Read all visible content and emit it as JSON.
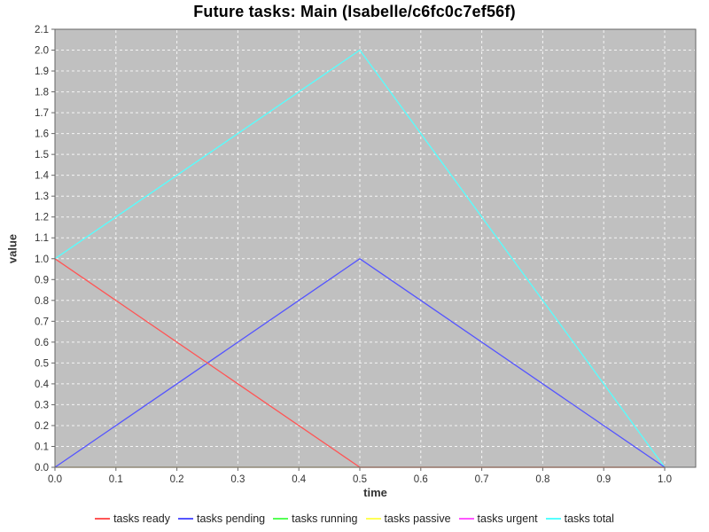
{
  "chart_data": {
    "type": "line",
    "title": "Future tasks: Main (Isabelle/c6fc0c7ef56f)",
    "xlabel": "time",
    "ylabel": "value",
    "xlim": [
      0.0,
      1.05
    ],
    "ylim": [
      0.0,
      2.1
    ],
    "x_ticks": [
      0.0,
      0.1,
      0.2,
      0.3,
      0.4,
      0.5,
      0.6,
      0.7,
      0.8,
      0.9,
      1.0
    ],
    "y_ticks": [
      0.0,
      0.1,
      0.2,
      0.3,
      0.4,
      0.5,
      0.6,
      0.7,
      0.8,
      0.9,
      1.0,
      1.1,
      1.2,
      1.3,
      1.4,
      1.5,
      1.6,
      1.7,
      1.8,
      1.9,
      2.0,
      2.1
    ],
    "grid": true,
    "legend_position": "bottom",
    "colors": {
      "plot_bg": "#C0C0C0",
      "grid": "#FFFFFF",
      "plot_border": "#666666",
      "tick": "#666666",
      "tick_text": "#333333",
      "title_text": "#000000"
    },
    "series": [
      {
        "name": "tasks ready",
        "color": "#FF5555",
        "points": [
          [
            0.0,
            1.0
          ],
          [
            0.5,
            0.0
          ],
          [
            1.0,
            0.0
          ]
        ]
      },
      {
        "name": "tasks pending",
        "color": "#5555FF",
        "points": [
          [
            0.0,
            0.0
          ],
          [
            0.5,
            1.0
          ],
          [
            1.0,
            0.0
          ]
        ]
      },
      {
        "name": "tasks running",
        "color": "#55FF55",
        "points": [
          [
            0.0,
            0.0
          ],
          [
            1.0,
            0.0
          ]
        ],
        "opacity": 0.25
      },
      {
        "name": "tasks passive",
        "color": "#FFFF55",
        "points": [
          [
            0.0,
            0.0
          ],
          [
            1.0,
            0.0
          ]
        ],
        "opacity": 1.0
      },
      {
        "name": "tasks urgent",
        "color": "#FF55FF",
        "points": [
          [
            0.0,
            0.0
          ],
          [
            1.0,
            0.0
          ]
        ],
        "opacity": 0.5
      },
      {
        "name": "tasks total",
        "color": "#55FFFF",
        "points": [
          [
            0.0,
            1.0
          ],
          [
            0.5,
            2.0
          ],
          [
            1.0,
            0.0
          ]
        ]
      }
    ],
    "draw_order": [
      5,
      3,
      4,
      2,
      1,
      0
    ]
  }
}
